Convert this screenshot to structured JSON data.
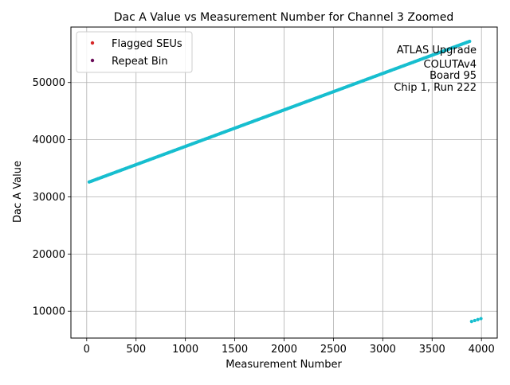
{
  "chart_data": {
    "type": "scatter",
    "title": "Dac A Value vs Measurement Number for Channel 3 Zoomed",
    "xlabel": "Measurement Number",
    "ylabel": "Dac A Value",
    "xlim": [
      -160,
      4160
    ],
    "ylim": [
      5300,
      59700
    ],
    "x_ticks": [
      0,
      500,
      1000,
      1500,
      2000,
      2500,
      3000,
      3500,
      4000
    ],
    "y_ticks": [
      10000,
      20000,
      30000,
      40000,
      50000
    ],
    "x_tick_labels": [
      "0",
      "500",
      "1000",
      "1500",
      "2000",
      "2500",
      "3000",
      "3500",
      "4000"
    ],
    "y_tick_labels": [
      "10000",
      "20000",
      "30000",
      "40000",
      "50000"
    ],
    "grid": true,
    "legend_position": "upper-left",
    "legend": [
      {
        "label": "Flagged SEUs",
        "color": "#d62728"
      },
      {
        "label": "Repeat Bin",
        "color": "#6a0d5a"
      }
    ],
    "annotation": [
      "ATLAS Upgrade",
      "COLUTAv4",
      "Board 95",
      "Chip 1, Run 222"
    ],
    "series": [
      {
        "color": "#17becf",
        "segments": [
          {
            "x_start": 25,
            "y_start": 32600,
            "x_end": 3880,
            "y_end": 57200,
            "count": 300
          },
          {
            "x_start": 3900,
            "y_start": 8200,
            "x_end": 3995,
            "y_end": 8700,
            "count": 4
          }
        ]
      }
    ]
  }
}
